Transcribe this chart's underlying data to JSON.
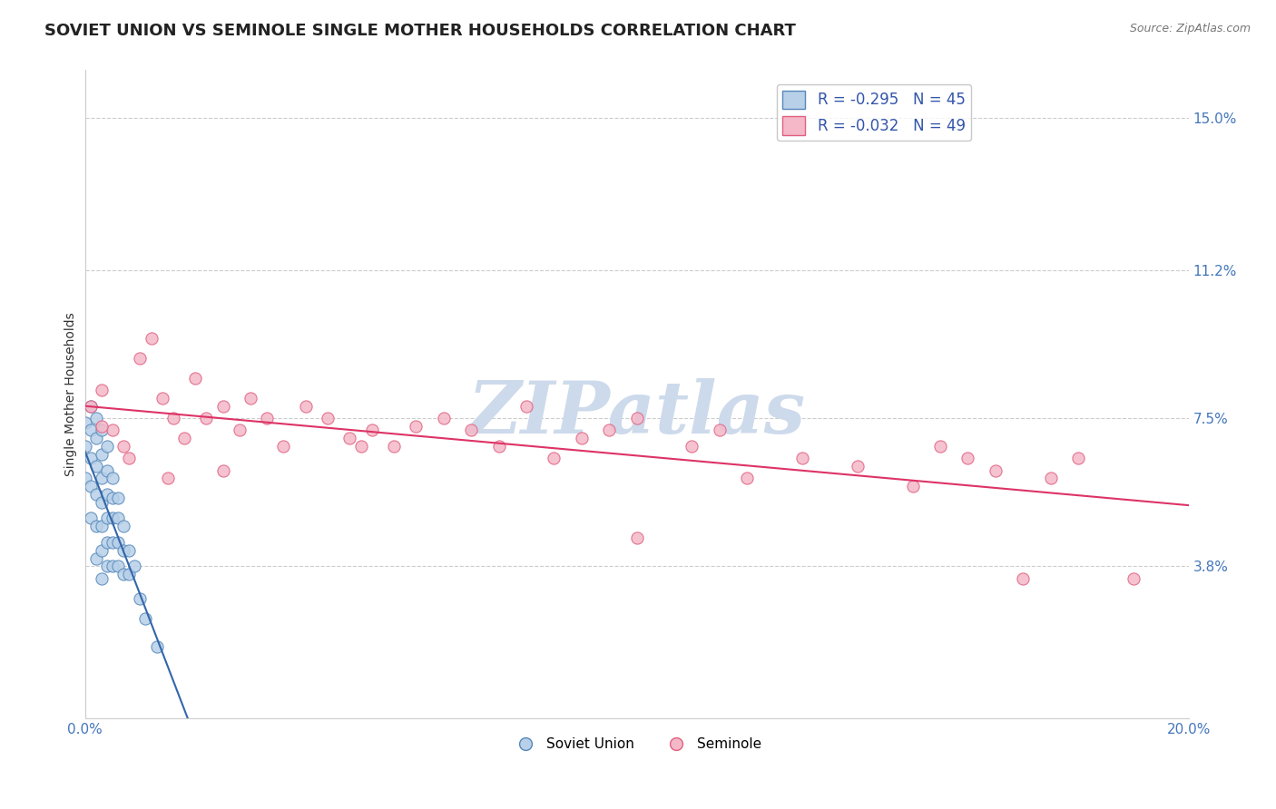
{
  "title": "SOVIET UNION VS SEMINOLE SINGLE MOTHER HOUSEHOLDS CORRELATION CHART",
  "source": "Source: ZipAtlas.com",
  "xlabel": "",
  "ylabel": "Single Mother Households",
  "xlim": [
    0.0,
    0.2
  ],
  "ylim": [
    0.0,
    0.162
  ],
  "xticks": [
    0.0,
    0.05,
    0.1,
    0.15,
    0.2
  ],
  "xticklabels": [
    "0.0%",
    "",
    "",
    "",
    "20.0%"
  ],
  "yticks": [
    0.038,
    0.075,
    0.112,
    0.15
  ],
  "yticklabels": [
    "3.8%",
    "7.5%",
    "11.2%",
    "15.0%"
  ],
  "series": [
    {
      "name": "Soviet Union",
      "R": -0.295,
      "N": 45,
      "color": "#b8d0e8",
      "edge_color": "#5588bb",
      "trend_color": "#3366aa",
      "x": [
        0.0,
        0.0,
        0.0,
        0.001,
        0.001,
        0.001,
        0.001,
        0.001,
        0.002,
        0.002,
        0.002,
        0.002,
        0.002,
        0.002,
        0.003,
        0.003,
        0.003,
        0.003,
        0.003,
        0.003,
        0.003,
        0.004,
        0.004,
        0.004,
        0.004,
        0.004,
        0.004,
        0.005,
        0.005,
        0.005,
        0.005,
        0.005,
        0.006,
        0.006,
        0.006,
        0.006,
        0.007,
        0.007,
        0.007,
        0.008,
        0.008,
        0.009,
        0.01,
        0.011,
        0.013
      ],
      "y": [
        0.074,
        0.068,
        0.06,
        0.078,
        0.072,
        0.065,
        0.058,
        0.05,
        0.075,
        0.07,
        0.063,
        0.056,
        0.048,
        0.04,
        0.072,
        0.066,
        0.06,
        0.054,
        0.048,
        0.042,
        0.035,
        0.068,
        0.062,
        0.056,
        0.05,
        0.044,
        0.038,
        0.06,
        0.055,
        0.05,
        0.044,
        0.038,
        0.055,
        0.05,
        0.044,
        0.038,
        0.048,
        0.042,
        0.036,
        0.042,
        0.036,
        0.038,
        0.03,
        0.025,
        0.018
      ]
    },
    {
      "name": "Seminole",
      "R": -0.032,
      "N": 49,
      "color": "#f4b8c8",
      "edge_color": "#e06080",
      "trend_color": "#dd3366",
      "x": [
        0.001,
        0.003,
        0.005,
        0.007,
        0.01,
        0.012,
        0.014,
        0.016,
        0.018,
        0.02,
        0.022,
        0.025,
        0.028,
        0.03,
        0.033,
        0.036,
        0.04,
        0.044,
        0.048,
        0.052,
        0.056,
        0.06,
        0.065,
        0.07,
        0.075,
        0.08,
        0.085,
        0.09,
        0.095,
        0.1,
        0.11,
        0.115,
        0.12,
        0.13,
        0.14,
        0.15,
        0.155,
        0.16,
        0.165,
        0.17,
        0.175,
        0.18,
        0.19,
        0.003,
        0.008,
        0.015,
        0.025,
        0.05,
        0.1
      ],
      "y": [
        0.078,
        0.082,
        0.072,
        0.068,
        0.09,
        0.095,
        0.08,
        0.075,
        0.07,
        0.085,
        0.075,
        0.078,
        0.072,
        0.08,
        0.075,
        0.068,
        0.078,
        0.075,
        0.07,
        0.072,
        0.068,
        0.073,
        0.075,
        0.072,
        0.068,
        0.078,
        0.065,
        0.07,
        0.072,
        0.075,
        0.068,
        0.072,
        0.06,
        0.065,
        0.063,
        0.058,
        0.068,
        0.065,
        0.062,
        0.035,
        0.06,
        0.065,
        0.035,
        0.073,
        0.065,
        0.06,
        0.062,
        0.068,
        0.045
      ]
    }
  ],
  "watermark": "ZIPatlas",
  "watermark_color": "#cddaeb",
  "background_color": "#ffffff",
  "title_fontsize": 13,
  "legend_fontsize": 12,
  "tick_color": "#4477bb",
  "grid_color": "#cccccc",
  "grid_style": "--"
}
